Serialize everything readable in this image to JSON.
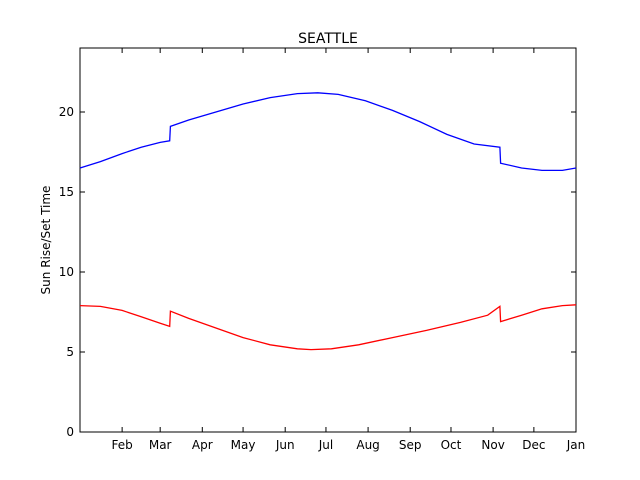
{
  "chart_data": {
    "type": "line",
    "title": "SEATTLE",
    "xlabel": "",
    "ylabel": "Sun Rise/Set Time",
    "ylim": [
      0,
      24
    ],
    "xlim": [
      "Jan",
      "Jan"
    ],
    "grid": false,
    "y_ticks": [
      0,
      5,
      10,
      15,
      20
    ],
    "x_ticks": [
      "Feb",
      "Mar",
      "Apr",
      "May",
      "Jun",
      "Jul",
      "Aug",
      "Sep",
      "Oct",
      "Nov",
      "Dec",
      "Jan"
    ],
    "series": [
      {
        "color": "#0000ff",
        "points": [
          [
            0,
            16.5
          ],
          [
            15,
            16.9
          ],
          [
            31,
            17.4
          ],
          [
            45,
            17.8
          ],
          [
            59,
            18.1
          ],
          [
            66,
            18.2
          ],
          [
            66.5,
            19.1
          ],
          [
            80,
            19.5
          ],
          [
            100,
            20.0
          ],
          [
            120,
            20.5
          ],
          [
            140,
            20.9
          ],
          [
            160,
            21.15
          ],
          [
            175,
            21.2
          ],
          [
            190,
            21.1
          ],
          [
            210,
            20.7
          ],
          [
            230,
            20.1
          ],
          [
            250,
            19.4
          ],
          [
            270,
            18.6
          ],
          [
            290,
            18.0
          ],
          [
            309,
            17.8
          ],
          [
            309.5,
            16.8
          ],
          [
            325,
            16.5
          ],
          [
            340,
            16.35
          ],
          [
            355,
            16.35
          ],
          [
            365,
            16.5
          ]
        ]
      },
      {
        "color": "#ff0000",
        "points": [
          [
            0,
            7.9
          ],
          [
            15,
            7.85
          ],
          [
            31,
            7.6
          ],
          [
            45,
            7.2
          ],
          [
            59,
            6.8
          ],
          [
            66,
            6.6
          ],
          [
            66.5,
            7.55
          ],
          [
            80,
            7.1
          ],
          [
            100,
            6.5
          ],
          [
            120,
            5.9
          ],
          [
            140,
            5.45
          ],
          [
            160,
            5.2
          ],
          [
            170,
            5.15
          ],
          [
            185,
            5.2
          ],
          [
            205,
            5.45
          ],
          [
            230,
            5.9
          ],
          [
            255,
            6.35
          ],
          [
            280,
            6.85
          ],
          [
            300,
            7.3
          ],
          [
            309,
            7.85
          ],
          [
            309.5,
            6.9
          ],
          [
            325,
            7.3
          ],
          [
            340,
            7.7
          ],
          [
            355,
            7.9
          ],
          [
            365,
            7.95
          ]
        ]
      }
    ]
  }
}
